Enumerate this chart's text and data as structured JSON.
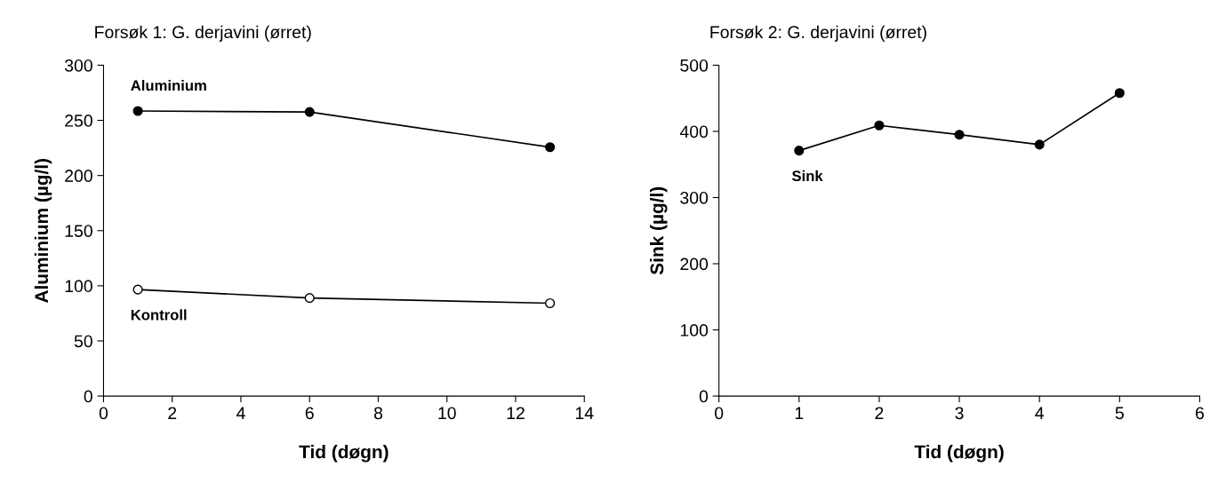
{
  "chart_data": [
    {
      "type": "line",
      "title": "Forsøk 1: G. derjavini (ørret)",
      "xlabel": "Tid (døgn)",
      "ylabel": "Aluminium (µg/l)",
      "x": [
        1,
        6,
        13
      ],
      "xlim": [
        0,
        14
      ],
      "xticks": [
        0,
        2,
        4,
        6,
        8,
        10,
        12,
        14
      ],
      "ylim": [
        0,
        300
      ],
      "yticks": [
        0,
        50,
        100,
        150,
        200,
        250,
        300
      ],
      "grid": false,
      "legend": false,
      "marker": "circle",
      "line_style": "solid",
      "series": [
        {
          "name": "Aluminium",
          "color": "#000000",
          "values": [
            258.5,
            257.6,
            225.7
          ]
        },
        {
          "name": "Kontroll",
          "color": "#ffffff",
          "values": [
            96.6,
            88.9,
            84.2
          ]
        }
      ]
    },
    {
      "type": "line",
      "title": "Forsøk 2: G. derjavini (ørret)",
      "xlabel": "Tid (døgn)",
      "ylabel": "Sink (µg/l)",
      "x": [
        1,
        2,
        3,
        4,
        5
      ],
      "xlim": [
        0,
        6
      ],
      "xticks": [
        0,
        1,
        2,
        3,
        4,
        5,
        6
      ],
      "ylim": [
        0,
        500
      ],
      "yticks": [
        0,
        100,
        200,
        300,
        400,
        500
      ],
      "grid": false,
      "legend": false,
      "marker": "circle",
      "line_style": "solid",
      "series": [
        {
          "name": "Sink",
          "color": "#000000",
          "values": [
            371,
            409,
            395,
            380,
            458
          ]
        }
      ]
    }
  ]
}
